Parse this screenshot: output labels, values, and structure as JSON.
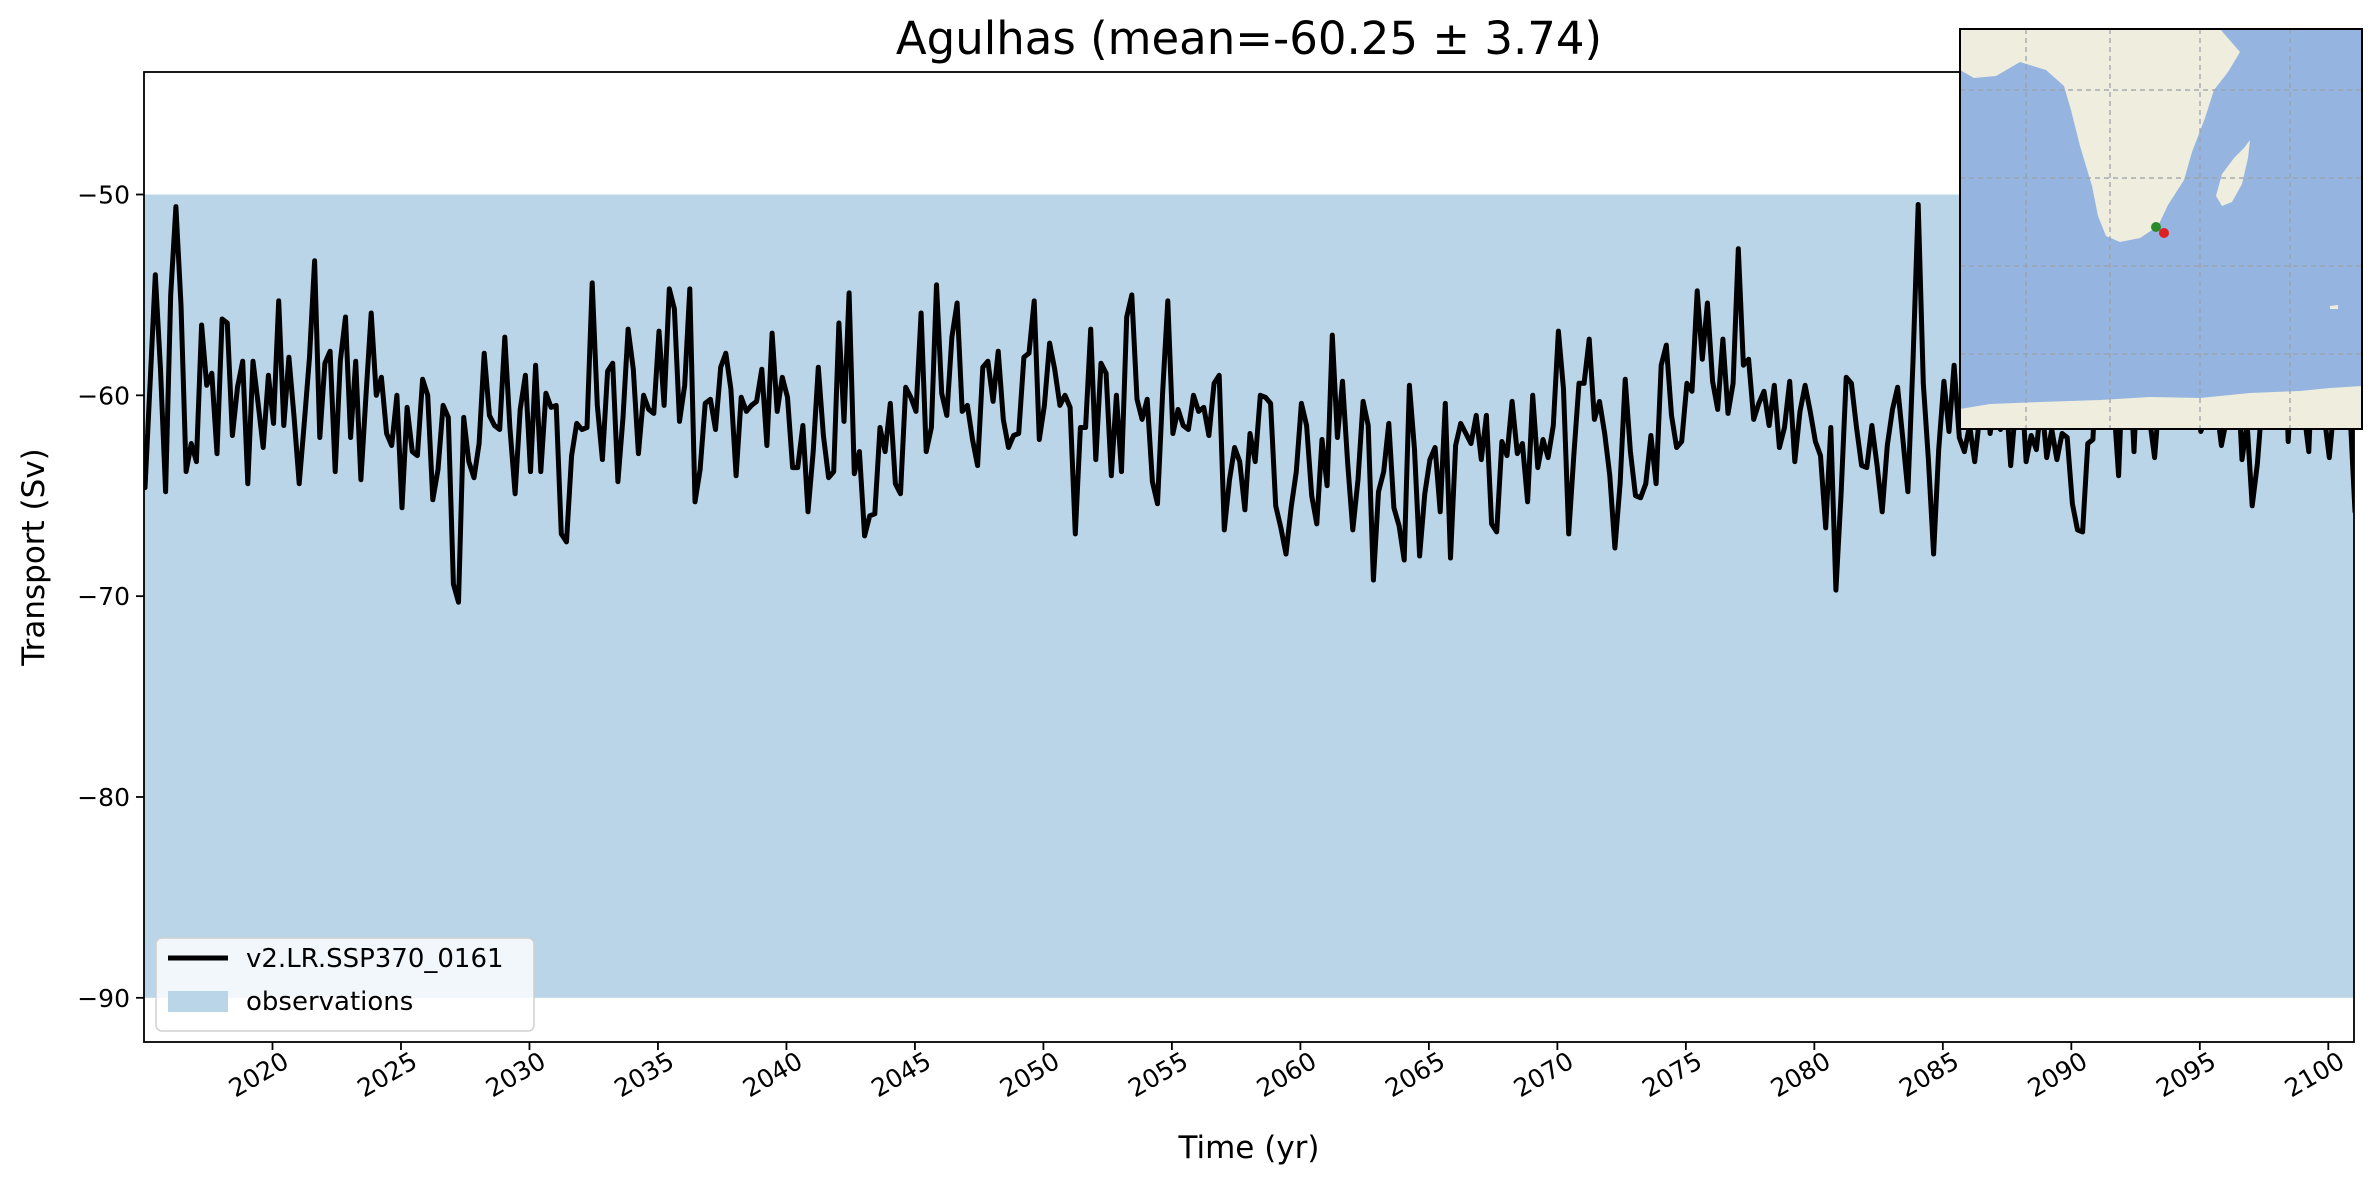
{
  "chart_data": {
    "type": "line",
    "title": "Agulhas (mean=-60.25 ± 3.74)",
    "xlabel": "Time (yr)",
    "ylabel": "Transport (Sv)",
    "xlim": [
      2015,
      2101
    ],
    "ylim": [
      -92.2,
      -43.9
    ],
    "xticks": [
      2020,
      2025,
      2030,
      2035,
      2040,
      2045,
      2050,
      2055,
      2060,
      2065,
      2070,
      2075,
      2080,
      2085,
      2090,
      2095,
      2100
    ],
    "xtick_labels": [
      "2020",
      "2025",
      "2030",
      "2035",
      "2040",
      "2045",
      "2050",
      "2055",
      "2060",
      "2065",
      "2070",
      "2075",
      "2080",
      "2085",
      "2090",
      "2095",
      "2100"
    ],
    "yticks": [
      -90,
      -80,
      -70,
      -60,
      -50
    ],
    "ytick_labels": [
      "−90",
      "−80",
      "−70",
      "−60",
      "−50"
    ],
    "observations": {
      "name": "observations",
      "y_min": -90,
      "y_max": -50,
      "color": "#bad5e8"
    },
    "series": [
      {
        "name": "v2.LR.SSP370_0161",
        "color": "#000000",
        "x_start": 2015.04,
        "x_step": 0.2,
        "values": [
          -64.6,
          -59.3,
          -54.0,
          -58.6,
          -64.8,
          -55.0,
          -50.6,
          -55.5,
          -63.8,
          -62.4,
          -63.3,
          -56.5,
          -59.5,
          -58.9,
          -62.9,
          -56.2,
          -56.4,
          -62.0,
          -59.6,
          -58.3,
          -64.4,
          -58.3,
          -60.4,
          -62.6,
          -59.0,
          -61.4,
          -55.3,
          -61.5,
          -58.1,
          -61.1,
          -64.4,
          -61.3,
          -58.1,
          -53.3,
          -62.1,
          -58.4,
          -57.8,
          -63.8,
          -58.3,
          -56.1,
          -62.1,
          -58.3,
          -64.2,
          -60.0,
          -55.9,
          -60.0,
          -59.1,
          -61.9,
          -62.5,
          -60.0,
          -65.6,
          -60.6,
          -62.8,
          -63.0,
          -59.2,
          -60.0,
          -65.2,
          -63.7,
          -60.5,
          -61.1,
          -69.4,
          -70.3,
          -61.1,
          -63.3,
          -64.1,
          -62.4,
          -57.9,
          -61.0,
          -61.5,
          -61.7,
          -57.1,
          -61.6,
          -64.9,
          -60.7,
          -59.0,
          -63.8,
          -58.5,
          -63.8,
          -59.9,
          -60.6,
          -60.5,
          -66.9,
          -67.3,
          -63.0,
          -61.4,
          -61.7,
          -61.6,
          -54.4,
          -60.5,
          -63.2,
          -58.8,
          -58.4,
          -64.3,
          -61.1,
          -56.7,
          -58.7,
          -62.9,
          -60.0,
          -60.7,
          -60.9,
          -56.8,
          -60.5,
          -54.7,
          -55.7,
          -61.3,
          -59.5,
          -54.7,
          -65.3,
          -63.7,
          -60.4,
          -60.2,
          -61.7,
          -58.6,
          -57.9,
          -59.7,
          -64.0,
          -60.1,
          -60.8,
          -60.5,
          -60.3,
          -58.7,
          -62.5,
          -56.9,
          -60.8,
          -59.1,
          -60.1,
          -63.6,
          -63.6,
          -61.5,
          -65.8,
          -62.8,
          -58.6,
          -62.0,
          -64.1,
          -63.8,
          -56.4,
          -61.3,
          -54.9,
          -63.9,
          -62.8,
          -67.0,
          -66.0,
          -65.9,
          -61.6,
          -62.8,
          -60.4,
          -64.4,
          -64.9,
          -59.6,
          -60.1,
          -60.8,
          -55.9,
          -62.8,
          -61.6,
          -54.5,
          -59.9,
          -61.0,
          -57.1,
          -55.4,
          -60.8,
          -60.5,
          -62.2,
          -63.5,
          -58.6,
          -58.3,
          -60.3,
          -57.8,
          -61.2,
          -62.6,
          -62.0,
          -61.9,
          -58.1,
          -57.9,
          -55.3,
          -62.2,
          -60.5,
          -57.4,
          -58.7,
          -60.5,
          -60.0,
          -60.6,
          -66.9,
          -61.6,
          -61.6,
          -56.7,
          -63.2,
          -58.4,
          -58.9,
          -64.0,
          -60.0,
          -63.8,
          -56.1,
          -55.0,
          -60.2,
          -61.2,
          -60.2,
          -64.3,
          -65.4,
          -59.8,
          -55.3,
          -61.9,
          -60.7,
          -61.5,
          -61.7,
          -60.0,
          -60.8,
          -60.6,
          -62.0,
          -59.4,
          -59.0,
          -66.7,
          -64.2,
          -62.6,
          -63.3,
          -65.7,
          -61.9,
          -63.3,
          -60.0,
          -60.1,
          -60.4,
          -65.5,
          -66.6,
          -67.9,
          -65.6,
          -63.8,
          -60.4,
          -61.5,
          -65.0,
          -66.4,
          -62.2,
          -64.5,
          -57.0,
          -62.1,
          -59.3,
          -63.4,
          -66.7,
          -64.2,
          -60.3,
          -61.5,
          -69.2,
          -64.8,
          -63.8,
          -61.4,
          -65.6,
          -66.5,
          -68.2,
          -59.5,
          -62.7,
          -68.0,
          -64.9,
          -63.2,
          -62.6,
          -65.8,
          -60.4,
          -68.1,
          -62.5,
          -61.4,
          -61.9,
          -62.4,
          -61.0,
          -63.2,
          -61.0,
          -66.4,
          -66.8,
          -62.3,
          -63.0,
          -60.3,
          -62.9,
          -62.4,
          -65.3,
          -60.0,
          -63.6,
          -62.2,
          -63.1,
          -61.5,
          -56.8,
          -59.7,
          -66.9,
          -63.0,
          -59.4,
          -59.4,
          -57.2,
          -61.2,
          -60.3,
          -61.9,
          -64.0,
          -67.6,
          -64.4,
          -59.2,
          -62.8,
          -65.0,
          -65.1,
          -64.4,
          -62.0,
          -64.4,
          -58.5,
          -57.5,
          -61.0,
          -62.6,
          -62.3,
          -59.4,
          -59.8,
          -54.8,
          -58.2,
          -55.4,
          -59.3,
          -60.7,
          -57.2,
          -60.9,
          -59.4,
          -52.7,
          -58.5,
          -58.2,
          -61.2,
          -60.4,
          -59.8,
          -61.5,
          -59.5,
          -62.6,
          -61.6,
          -59.3,
          -63.3,
          -60.8,
          -59.5,
          -60.8,
          -62.3,
          -63.0,
          -66.6,
          -61.6,
          -69.7,
          -64.9,
          -59.1,
          -59.4,
          -61.6,
          -63.5,
          -63.6,
          -61.5,
          -63.5,
          -65.8,
          -62.5,
          -60.7,
          -59.6,
          -62.1,
          -64.8,
          -58.3,
          -50.5,
          -59.4,
          -63.2,
          -67.9,
          -62.7,
          -59.3,
          -61.8,
          -58.5,
          -62.1,
          -62.8,
          -61.5,
          -63.3,
          -61.0,
          -58.1,
          -61.9,
          -60.2,
          -61.7,
          -59.7,
          -63.5,
          -60.5,
          -58.9,
          -63.3,
          -62.0,
          -62.7,
          -60.2,
          -63.1,
          -61.7,
          -63.2,
          -61.9,
          -62.1,
          -65.4,
          -66.7,
          -66.8,
          -62.4,
          -62.2,
          -56.7,
          -58.8,
          -61.1,
          -60.2,
          -64.0,
          -57.4,
          -57.6,
          -62.8,
          -56.8,
          -57.8,
          -61.1,
          -63.1,
          -59.9,
          -60.3,
          -61.5,
          -58.5,
          -57.0,
          -57.2,
          -59.3,
          -59.7,
          -61.8,
          -61.1,
          -57.7,
          -60.4,
          -62.5,
          -61.2,
          -56.7,
          -58.0,
          -63.2,
          -61.4,
          -65.5,
          -63.4,
          -60.1,
          -61.0,
          -58.0,
          -59.8,
          -54.6,
          -62.3,
          -57.6,
          -57.7,
          -60.7,
          -62.8,
          -56.5,
          -61.1,
          -61.0,
          -63.1,
          -60.3,
          -54.6,
          -59.8,
          -60.7,
          -65.8,
          -60.6,
          -60.7,
          -57.2,
          -58.9,
          -59.7,
          -58.6,
          -63.2,
          -64.2,
          -64.1,
          -62.2,
          -62.8,
          -59.4,
          -55.2,
          -64.5,
          -61.8,
          -61.4,
          -64.7,
          -66.3,
          -58.2,
          -61.4,
          -60.6,
          -63.1,
          -61.3,
          -59.4,
          -62.3,
          -60.3,
          -60.7,
          -57.4,
          -60.5,
          -56.2,
          -62.5,
          -60.6,
          -61.6,
          -59.3,
          -59.1,
          -63.9,
          -65.1,
          -61.6,
          -55.1,
          -61.8,
          -57.1,
          -61.2,
          -62.5,
          -59.6,
          -61.5,
          -62.9,
          -58.3,
          -62.4,
          -54.5,
          -60.1,
          -62.2,
          -61.7,
          -62.9,
          -61.1,
          -61.6,
          -63.3,
          -60.5,
          -63.6,
          -61.7,
          -63.7,
          -59.7,
          -62.3,
          -58.6,
          -60.5,
          -60.9,
          -59.2,
          -62.2,
          -59.7,
          -61.8,
          -60.4,
          -63.5,
          -59.0,
          -63.1,
          -61.2,
          -58.7,
          -61.9,
          -62.8,
          -60.7,
          -60.9,
          -63.1,
          -60.1,
          -62.1,
          -63.4,
          -59.7,
          -62.5,
          -60.7,
          -61.7,
          -62.4,
          -63.4,
          -60.8,
          -61.2
        ]
      }
    ],
    "legend": {
      "position": "lower-left",
      "entries": [
        {
          "label": "v2.LR.SSP370_0161",
          "kind": "line",
          "color": "#000000"
        },
        {
          "label": "observations",
          "kind": "patch",
          "color": "#bad5e8"
        }
      ]
    },
    "inset_map": {
      "position": "top-right",
      "ocean_color": "#95b5e0",
      "land_color": "#efedde",
      "grid": true,
      "markers": [
        {
          "name": "start-point",
          "color": "#2a8a2a"
        },
        {
          "name": "end-point",
          "color": "#e02020"
        }
      ]
    }
  }
}
